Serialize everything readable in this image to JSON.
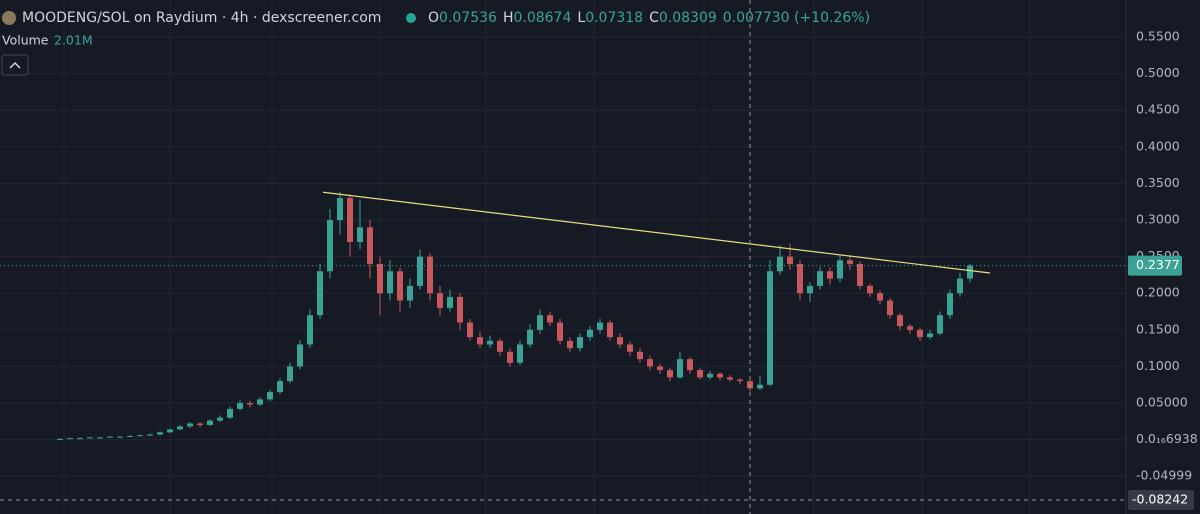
{
  "chart_data": {
    "type": "candlestick",
    "title": "MOODENG/SOL on Raydium · 4h · dexscreener.com",
    "ohlc_legend": [
      {
        "label": "O",
        "value": "0.07536"
      },
      {
        "label": "H",
        "value": "0.08674"
      },
      {
        "label": "L",
        "value": "0.07318"
      },
      {
        "label": "C",
        "value": "0.08309"
      }
    ],
    "change": "0.007730 (+10.26%)",
    "volume_label": "Volume",
    "volume_value": "2.01M",
    "up_color": "#3aa396",
    "down_color": "#c8585c",
    "ylim": [
      -0.1016,
      0.6006
    ],
    "yticks": [
      {
        "value": 0.55,
        "label": "0.5500"
      },
      {
        "value": 0.5,
        "label": "0.5000"
      },
      {
        "value": 0.45,
        "label": "0.4500"
      },
      {
        "value": 0.4,
        "label": "0.4000"
      },
      {
        "value": 0.35,
        "label": "0.3500"
      },
      {
        "value": 0.3,
        "label": "0.3000"
      },
      {
        "value": 0.25,
        "label": "0.2500"
      },
      {
        "value": 0.2,
        "label": "0.2000"
      },
      {
        "value": 0.15,
        "label": "0.1500"
      },
      {
        "value": 0.1,
        "label": "0.1000"
      },
      {
        "value": 0.05,
        "label": "0.05000"
      },
      {
        "value": 6.938e-17,
        "label": "0.0₁₆6938"
      },
      -0.04999
    ],
    "last_price": 0.2377,
    "crosshair": {
      "index": 69,
      "value": -0.08242
    },
    "trendline": {
      "x": [
        26.3,
        93
      ],
      "values": [
        0.338,
        0.2276
      ],
      "color": "#e6de7c"
    },
    "candles": [
      [
        0.001,
        0.002,
        0.001,
        0.001
      ],
      [
        0.001,
        0.002,
        0.001,
        0.002
      ],
      [
        0.002,
        0.003,
        0.001,
        0.002
      ],
      [
        0.002,
        0.004,
        0.002,
        0.003
      ],
      [
        0.003,
        0.004,
        0.002,
        0.003
      ],
      [
        0.003,
        0.005,
        0.003,
        0.004
      ],
      [
        0.004,
        0.005,
        0.003,
        0.004
      ],
      [
        0.004,
        0.006,
        0.004,
        0.005
      ],
      [
        0.005,
        0.007,
        0.005,
        0.006
      ],
      [
        0.006,
        0.008,
        0.005,
        0.007
      ],
      [
        0.007,
        0.011,
        0.006,
        0.01
      ],
      [
        0.01,
        0.015,
        0.009,
        0.014
      ],
      [
        0.014,
        0.02,
        0.013,
        0.018
      ],
      [
        0.018,
        0.024,
        0.016,
        0.022
      ],
      [
        0.022,
        0.024,
        0.017,
        0.02
      ],
      [
        0.02,
        0.028,
        0.019,
        0.026
      ],
      [
        0.026,
        0.033,
        0.024,
        0.03
      ],
      [
        0.03,
        0.045,
        0.028,
        0.042
      ],
      [
        0.042,
        0.054,
        0.04,
        0.05
      ],
      [
        0.05,
        0.053,
        0.044,
        0.048
      ],
      [
        0.048,
        0.058,
        0.046,
        0.055
      ],
      [
        0.055,
        0.068,
        0.053,
        0.065
      ],
      [
        0.065,
        0.084,
        0.062,
        0.08
      ],
      [
        0.08,
        0.105,
        0.077,
        0.1
      ],
      [
        0.1,
        0.136,
        0.096,
        0.13
      ],
      [
        0.13,
        0.178,
        0.125,
        0.17
      ],
      [
        0.17,
        0.24,
        0.165,
        0.23
      ],
      [
        0.23,
        0.315,
        0.22,
        0.3
      ],
      [
        0.3,
        0.338,
        0.28,
        0.33
      ],
      [
        0.33,
        0.335,
        0.25,
        0.27
      ],
      [
        0.27,
        0.328,
        0.26,
        0.29
      ],
      [
        0.29,
        0.3,
        0.22,
        0.24
      ],
      [
        0.24,
        0.25,
        0.17,
        0.2
      ],
      [
        0.2,
        0.245,
        0.19,
        0.23
      ],
      [
        0.23,
        0.235,
        0.175,
        0.19
      ],
      [
        0.19,
        0.22,
        0.18,
        0.21
      ],
      [
        0.21,
        0.26,
        0.205,
        0.25
      ],
      [
        0.25,
        0.255,
        0.19,
        0.2
      ],
      [
        0.2,
        0.21,
        0.17,
        0.18
      ],
      [
        0.18,
        0.205,
        0.175,
        0.195
      ],
      [
        0.195,
        0.2,
        0.15,
        0.16
      ],
      [
        0.16,
        0.165,
        0.135,
        0.14
      ],
      [
        0.14,
        0.148,
        0.125,
        0.13
      ],
      [
        0.13,
        0.142,
        0.125,
        0.135
      ],
      [
        0.135,
        0.138,
        0.115,
        0.12
      ],
      [
        0.12,
        0.125,
        0.1,
        0.105
      ],
      [
        0.105,
        0.135,
        0.102,
        0.13
      ],
      [
        0.13,
        0.158,
        0.126,
        0.15
      ],
      [
        0.15,
        0.178,
        0.145,
        0.17
      ],
      [
        0.17,
        0.175,
        0.155,
        0.16
      ],
      [
        0.16,
        0.165,
        0.13,
        0.135
      ],
      [
        0.135,
        0.14,
        0.12,
        0.125
      ],
      [
        0.125,
        0.145,
        0.12,
        0.14
      ],
      [
        0.14,
        0.155,
        0.135,
        0.15
      ],
      [
        0.15,
        0.165,
        0.145,
        0.16
      ],
      [
        0.16,
        0.163,
        0.135,
        0.14
      ],
      [
        0.14,
        0.145,
        0.125,
        0.13
      ],
      [
        0.13,
        0.134,
        0.115,
        0.12
      ],
      [
        0.12,
        0.125,
        0.105,
        0.11
      ],
      [
        0.11,
        0.115,
        0.095,
        0.1
      ],
      [
        0.1,
        0.104,
        0.09,
        0.095
      ],
      [
        0.095,
        0.098,
        0.08,
        0.085
      ],
      [
        0.085,
        0.12,
        0.083,
        0.11
      ],
      [
        0.11,
        0.113,
        0.09,
        0.095
      ],
      [
        0.095,
        0.098,
        0.082,
        0.085
      ],
      [
        0.085,
        0.094,
        0.082,
        0.09
      ],
      [
        0.09,
        0.092,
        0.081,
        0.085
      ],
      [
        0.085,
        0.088,
        0.079,
        0.082
      ],
      [
        0.082,
        0.084,
        0.076,
        0.08
      ],
      [
        0.08,
        0.082,
        0.066,
        0.07
      ],
      [
        0.07,
        0.087,
        0.068,
        0.075
      ],
      [
        0.075,
        0.245,
        0.073,
        0.23
      ],
      [
        0.23,
        0.265,
        0.225,
        0.25
      ],
      [
        0.25,
        0.268,
        0.232,
        0.24
      ],
      [
        0.24,
        0.245,
        0.19,
        0.2
      ],
      [
        0.2,
        0.215,
        0.188,
        0.21
      ],
      [
        0.21,
        0.236,
        0.205,
        0.23
      ],
      [
        0.23,
        0.235,
        0.212,
        0.22
      ],
      [
        0.22,
        0.252,
        0.215,
        0.245
      ],
      [
        0.245,
        0.25,
        0.232,
        0.24
      ],
      [
        0.24,
        0.244,
        0.205,
        0.21
      ],
      [
        0.21,
        0.213,
        0.195,
        0.2
      ],
      [
        0.2,
        0.204,
        0.185,
        0.19
      ],
      [
        0.19,
        0.193,
        0.165,
        0.17
      ],
      [
        0.17,
        0.173,
        0.15,
        0.155
      ],
      [
        0.155,
        0.158,
        0.145,
        0.15
      ],
      [
        0.15,
        0.153,
        0.135,
        0.14
      ],
      [
        0.14,
        0.15,
        0.137,
        0.145
      ],
      [
        0.145,
        0.175,
        0.143,
        0.17
      ],
      [
        0.17,
        0.205,
        0.165,
        0.2
      ],
      [
        0.2,
        0.228,
        0.195,
        0.22
      ],
      [
        0.22,
        0.24,
        0.215,
        0.2377
      ]
    ]
  }
}
